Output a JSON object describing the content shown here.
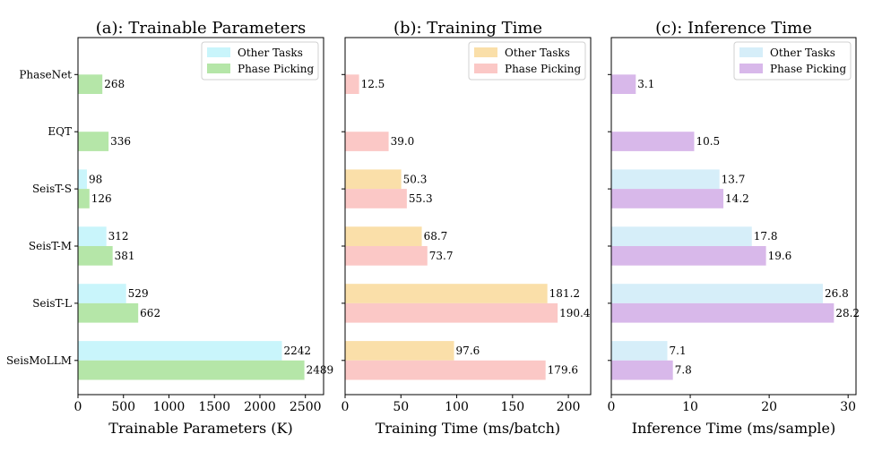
{
  "chart_data": [
    {
      "type": "bar",
      "orientation": "horizontal",
      "title": "(a): Trainable Parameters",
      "xlabel": "Trainable Parameters (K)",
      "xlim": [
        0,
        2700
      ],
      "xticks": [
        0,
        500,
        1000,
        1500,
        2000,
        2500
      ],
      "categories": [
        "PhaseNet",
        "EQT",
        "SeisT-S",
        "SeisT-M",
        "SeisT-L",
        "SeisMoLLM"
      ],
      "legend_position": "top-right",
      "series": [
        {
          "name": "Other Tasks",
          "color": "#c9f5fb",
          "values": [
            null,
            null,
            98,
            312,
            529,
            2242
          ],
          "labels": [
            "",
            "",
            "98",
            "312",
            "529",
            "2242"
          ]
        },
        {
          "name": "Phase Picking",
          "color": "#b5e6a8",
          "values": [
            268,
            336,
            126,
            381,
            662,
            2489
          ],
          "labels": [
            "268",
            "336",
            "126",
            "381",
            "662",
            "2489"
          ]
        }
      ]
    },
    {
      "type": "bar",
      "orientation": "horizontal",
      "title": "(b): Training Time",
      "xlabel": "Training Time (ms/batch)",
      "xlim": [
        0,
        220
      ],
      "xticks": [
        0,
        50,
        100,
        150,
        200
      ],
      "categories": [
        "PhaseNet",
        "EQT",
        "SeisT-S",
        "SeisT-M",
        "SeisT-L",
        "SeisMoLLM"
      ],
      "legend_position": "top-right",
      "series": [
        {
          "name": "Other Tasks",
          "color": "#fadfa9",
          "values": [
            null,
            null,
            50.3,
            68.7,
            181.2,
            97.6
          ],
          "labels": [
            "",
            "",
            "50.3",
            "68.7",
            "181.2",
            "97.6"
          ]
        },
        {
          "name": "Phase Picking",
          "color": "#fbc8c6",
          "values": [
            12.5,
            39.0,
            55.3,
            73.7,
            190.4,
            179.6
          ],
          "labels": [
            "12.5",
            "39.0",
            "55.3",
            "73.7",
            "190.4",
            "179.6"
          ]
        }
      ]
    },
    {
      "type": "bar",
      "orientation": "horizontal",
      "title": "(c): Inference Time",
      "xlabel": "Inference Time (ms/sample)",
      "xlim": [
        0,
        31
      ],
      "xticks": [
        0,
        10,
        20,
        30
      ],
      "categories": [
        "PhaseNet",
        "EQT",
        "SeisT-S",
        "SeisT-M",
        "SeisT-L",
        "SeisMoLLM"
      ],
      "legend_position": "top-right",
      "series": [
        {
          "name": "Other Tasks",
          "color": "#d6eef9",
          "values": [
            null,
            null,
            13.7,
            17.8,
            26.8,
            7.1
          ],
          "labels": [
            "",
            "",
            "13.7",
            "17.8",
            "26.8",
            "7.1"
          ]
        },
        {
          "name": "Phase Picking",
          "color": "#d8b8ea",
          "values": [
            3.1,
            10.5,
            14.2,
            19.6,
            28.2,
            7.8
          ],
          "labels": [
            "3.1",
            "10.5",
            "14.2",
            "19.6",
            "28.2",
            "7.8"
          ]
        }
      ]
    }
  ]
}
